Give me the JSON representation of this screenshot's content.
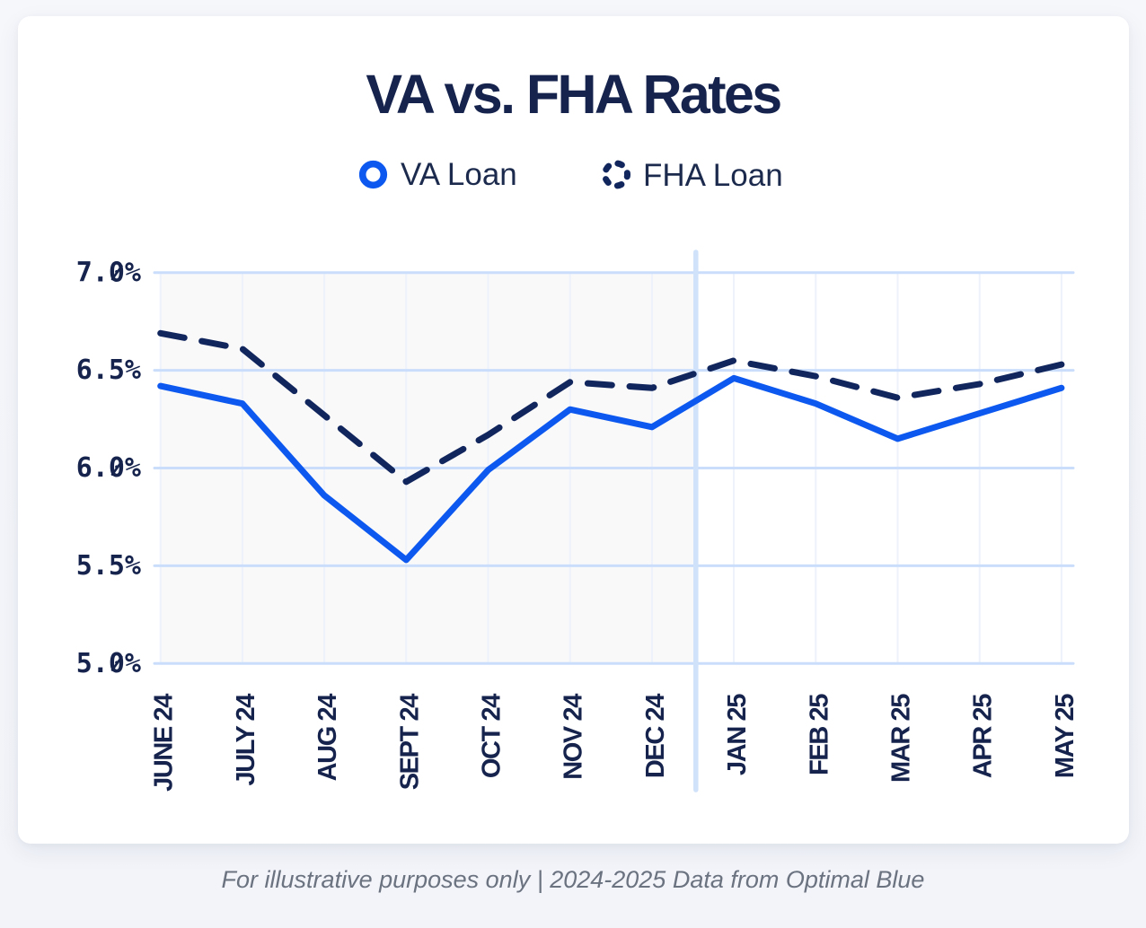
{
  "title": "VA vs. FHA Rates",
  "legend": {
    "items": [
      {
        "label": "VA Loan",
        "marker": "solid-ring-icon",
        "color": "#0d59f0"
      },
      {
        "label": "FHA Loan",
        "marker": "dashed-ring-icon",
        "color": "#12265e"
      }
    ]
  },
  "footer": "For illustrative purposes only | 2024-2025 Data from Optimal Blue",
  "chart_data": {
    "type": "line",
    "title": "VA vs. FHA Rates",
    "categories": [
      "JUNE 24",
      "JULY 24",
      "AUG 24",
      "SEPT 24",
      "OCT 24",
      "NOV 24",
      "DEC 24",
      "JAN 25",
      "FEB 25",
      "MAR 25",
      "APR 25",
      "MAY 25"
    ],
    "series": [
      {
        "name": "VA Loan",
        "style": "solid",
        "color": "#0d59f0",
        "values": [
          6.42,
          6.33,
          5.86,
          5.53,
          5.99,
          6.3,
          6.21,
          6.46,
          6.33,
          6.15,
          6.28,
          6.41
        ]
      },
      {
        "name": "FHA Loan",
        "style": "dashed",
        "color": "#12265e",
        "values": [
          6.69,
          6.61,
          6.27,
          5.93,
          6.17,
          6.44,
          6.41,
          6.55,
          6.47,
          6.36,
          6.43,
          6.53
        ]
      }
    ],
    "xlabel": "",
    "ylabel": "",
    "ylim": [
      5.0,
      7.0
    ],
    "yticks": [
      "7.0%",
      "6.5%",
      "6.0%",
      "5.5%",
      "5.0%"
    ],
    "ytick_values": [
      7.0,
      6.5,
      6.0,
      5.5,
      5.0
    ],
    "grid": true,
    "legend_position": "top",
    "shaded_region": {
      "from": "JUNE 24",
      "to": "DEC 24"
    },
    "year_divider_between": [
      "DEC 24",
      "JAN 25"
    ]
  },
  "colors": {
    "title_text": "#15234d",
    "axis_text": "#15234d",
    "legend_text": "#1c2b4d",
    "va_line": "#0d59f0",
    "fha_line": "#12265e",
    "h_gridline": "#cadefb",
    "v_gridline": "#edf2fb",
    "year_divider": "#cfe2fa",
    "shade_2024": "#f9f9fa",
    "footer_text": "#6b7280",
    "card_bg": "#ffffff",
    "page_bg": "#f4f6fa"
  }
}
